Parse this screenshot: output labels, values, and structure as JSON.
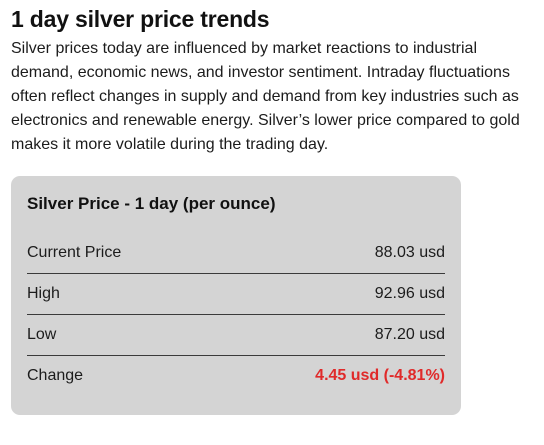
{
  "heading": "1 day silver price trends",
  "intro": "Silver prices today are influenced by market reactions to industrial demand, economic news, and investor sentiment. Intraday fluctuations often reflect changes in supply and demand from key industries such as electronics and renewable energy. Silver’s lower price compared to gold makes it more volatile during the trading day.",
  "card": {
    "title": "Silver Price - 1 day (per ounce)",
    "rows": [
      {
        "label": "Current Price",
        "value": "88.03 usd"
      },
      {
        "label": "High",
        "value": "92.96 usd"
      },
      {
        "label": "Low",
        "value": "87.20 usd"
      },
      {
        "label": "Change",
        "value": "4.45 usd (-4.81%)"
      }
    ]
  },
  "colors": {
    "card_background": "#d4d4d4",
    "negative_change": "#e02a2a"
  }
}
